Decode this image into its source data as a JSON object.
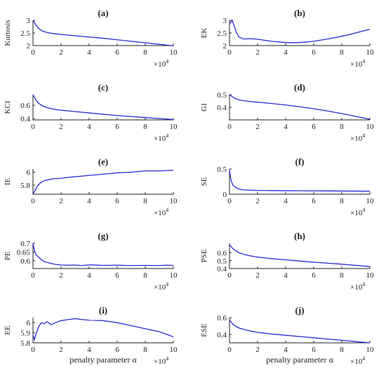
{
  "figure": {
    "xlabel_text": "penalty parameter α",
    "exponent_text": "×10",
    "exponent_power": "4",
    "line_color": "#2b2bd9"
  },
  "chart_data": [
    {
      "id": "a",
      "type": "line",
      "title": "(a)",
      "ylabel": "Kurtosis",
      "xlim": [
        0,
        10
      ],
      "ylim": [
        2,
        3
      ],
      "xticks": [
        0,
        2,
        4,
        6,
        8,
        10
      ],
      "yticks": [
        2,
        2.5,
        3
      ],
      "ytick_labels": [
        "2",
        "2.5",
        "3"
      ],
      "show_xlabel": false,
      "x": [
        0,
        0.2,
        0.4,
        0.7,
        1,
        1.5,
        2,
        3,
        4,
        5,
        6,
        7,
        8,
        9,
        10
      ],
      "y": [
        3.0,
        2.82,
        2.68,
        2.57,
        2.52,
        2.47,
        2.44,
        2.39,
        2.34,
        2.29,
        2.23,
        2.17,
        2.11,
        2.05,
        1.99
      ]
    },
    {
      "id": "b",
      "type": "line",
      "title": "(b)",
      "ylabel": "EK",
      "xlim": [
        0,
        10
      ],
      "ylim": [
        2,
        3
      ],
      "xticks": [
        0,
        2,
        4,
        6,
        8,
        10
      ],
      "yticks": [
        2,
        2.5,
        3
      ],
      "ytick_labels": [
        "2",
        "2.5",
        "3"
      ],
      "show_xlabel": false,
      "x": [
        0,
        0.2,
        0.35,
        0.5,
        0.7,
        1,
        1.5,
        2,
        3,
        4,
        4.5,
        5,
        6,
        7,
        8,
        9,
        10
      ],
      "y": [
        2.85,
        3.0,
        2.75,
        2.5,
        2.33,
        2.26,
        2.27,
        2.25,
        2.17,
        2.12,
        2.11,
        2.12,
        2.17,
        2.26,
        2.37,
        2.5,
        2.65
      ]
    },
    {
      "id": "c",
      "type": "line",
      "title": "(c)",
      "ylabel": "KCI",
      "xlim": [
        0,
        10
      ],
      "ylim": [
        0.38,
        0.76
      ],
      "xticks": [
        0,
        2,
        4,
        6,
        8,
        10
      ],
      "yticks": [
        0.4,
        0.6
      ],
      "ytick_labels": [
        "0.4",
        "0.6"
      ],
      "show_xlabel": false,
      "x": [
        0,
        0.2,
        0.4,
        0.7,
        1,
        1.5,
        2,
        3,
        4,
        5,
        6,
        7,
        8,
        9,
        10
      ],
      "y": [
        0.76,
        0.68,
        0.63,
        0.59,
        0.565,
        0.54,
        0.525,
        0.505,
        0.485,
        0.465,
        0.445,
        0.43,
        0.415,
        0.4,
        0.385
      ]
    },
    {
      "id": "d",
      "type": "line",
      "title": "(d)",
      "ylabel": "GI",
      "xlim": [
        0,
        10
      ],
      "ylim": [
        0.3,
        0.5
      ],
      "xticks": [
        0,
        2,
        4,
        6,
        8,
        10
      ],
      "yticks": [
        0.4,
        0.5
      ],
      "ytick_labels": [
        "0.4",
        "0.5"
      ],
      "show_xlabel": false,
      "x": [
        0,
        0.2,
        0.4,
        0.7,
        1,
        1.5,
        2,
        3,
        4,
        5,
        6,
        7,
        8,
        9,
        10
      ],
      "y": [
        0.5,
        0.483,
        0.47,
        0.458,
        0.452,
        0.445,
        0.44,
        0.43,
        0.418,
        0.404,
        0.388,
        0.37,
        0.35,
        0.328,
        0.305
      ]
    },
    {
      "id": "e",
      "type": "line",
      "title": "(e)",
      "ylabel": "IE",
      "xlim": [
        0,
        10
      ],
      "ylim": [
        5.66,
        6.05
      ],
      "xticks": [
        0,
        2,
        4,
        6,
        8,
        10
      ],
      "yticks": [
        5.8,
        6
      ],
      "ytick_labels": [
        "5.8",
        "6"
      ],
      "show_xlabel": false,
      "x": [
        0,
        0.1,
        0.3,
        0.5,
        0.8,
        1,
        1.5,
        2,
        2.5,
        3,
        4,
        5,
        6,
        7,
        8,
        9,
        10
      ],
      "y": [
        5.66,
        5.7,
        5.78,
        5.83,
        5.87,
        5.88,
        5.9,
        5.905,
        5.92,
        5.93,
        5.95,
        5.97,
        5.99,
        6.0,
        6.02,
        6.02,
        6.03
      ]
    },
    {
      "id": "f",
      "type": "line",
      "title": "(f)",
      "ylabel": "SE",
      "xlim": [
        0,
        10
      ],
      "ylim": [
        0,
        0.5
      ],
      "xticks": [
        0,
        2,
        4,
        6,
        8,
        10
      ],
      "yticks": [
        0,
        0.5
      ],
      "ytick_labels": [
        "0",
        "0.5"
      ],
      "show_xlabel": false,
      "x": [
        0,
        0.08,
        0.15,
        0.25,
        0.4,
        0.6,
        0.8,
        1,
        1.5,
        2,
        3,
        4,
        5,
        6,
        7,
        8,
        9,
        10
      ],
      "y": [
        0.48,
        0.32,
        0.24,
        0.18,
        0.14,
        0.11,
        0.095,
        0.085,
        0.08,
        0.075,
        0.072,
        0.07,
        0.068,
        0.066,
        0.065,
        0.063,
        0.062,
        0.06
      ]
    },
    {
      "id": "g",
      "type": "line",
      "title": "(g)",
      "ylabel": "PE",
      "xlim": [
        0,
        10
      ],
      "ylim": [
        0.555,
        0.7
      ],
      "xticks": [
        0,
        2,
        4,
        6,
        8,
        10
      ],
      "yticks": [
        0.6,
        0.65,
        0.7
      ],
      "ytick_labels": [
        "0.6",
        "0.65",
        "0.7"
      ],
      "show_xlabel": false,
      "x": [
        0,
        0.1,
        0.2,
        0.4,
        0.6,
        0.8,
        1,
        1.5,
        2,
        2.5,
        3,
        3.5,
        4,
        5,
        6,
        7,
        8,
        9,
        9.5,
        10
      ],
      "y": [
        0.7,
        0.66,
        0.635,
        0.62,
        0.605,
        0.595,
        0.59,
        0.58,
        0.575,
        0.574,
        0.575,
        0.572,
        0.576,
        0.573,
        0.574,
        0.572,
        0.573,
        0.572,
        0.574,
        0.573
      ]
    },
    {
      "id": "h",
      "type": "line",
      "title": "(h)",
      "ylabel": "PSE",
      "xlim": [
        0,
        10
      ],
      "ylim": [
        0.4,
        0.72
      ],
      "xticks": [
        0,
        2,
        4,
        6,
        8,
        10
      ],
      "yticks": [
        0.4,
        0.5,
        0.6
      ],
      "ytick_labels": [
        "0.4",
        "0.5",
        "0.6"
      ],
      "show_xlabel": false,
      "x": [
        0,
        0.2,
        0.4,
        0.7,
        1,
        1.5,
        2,
        3,
        4,
        5,
        6,
        7,
        8,
        9,
        10
      ],
      "y": [
        0.7,
        0.66,
        0.63,
        0.6,
        0.58,
        0.56,
        0.545,
        0.525,
        0.51,
        0.495,
        0.48,
        0.468,
        0.455,
        0.44,
        0.425
      ]
    },
    {
      "id": "i",
      "type": "line",
      "title": "(i)",
      "ylabel": "EE",
      "xlim": [
        0,
        10
      ],
      "ylim": [
        5.8,
        6.05
      ],
      "xticks": [
        0,
        2,
        4,
        6,
        8,
        10
      ],
      "yticks": [
        5.8,
        5.9,
        6
      ],
      "ytick_labels": [
        "5.8",
        "5.9",
        "6"
      ],
      "show_xlabel": true,
      "x": [
        0,
        0.1,
        0.2,
        0.4,
        0.6,
        0.8,
        1,
        1.3,
        1.6,
        2,
        2.5,
        3,
        3.5,
        4,
        5,
        6,
        7,
        8,
        9,
        10
      ],
      "y": [
        5.88,
        5.83,
        5.88,
        5.96,
        6.0,
        5.99,
        6.01,
        5.98,
        6.0,
        6.02,
        6.03,
        6.04,
        6.03,
        6.025,
        6.02,
        6.0,
        5.97,
        5.94,
        5.91,
        5.86
      ]
    },
    {
      "id": "j",
      "type": "line",
      "title": "(j)",
      "ylabel": "ESE",
      "xlim": [
        0,
        10
      ],
      "ylim": [
        0.3,
        0.6
      ],
      "xticks": [
        0,
        2,
        4,
        6,
        8,
        10
      ],
      "yticks": [
        0.4,
        0.6
      ],
      "ytick_labels": [
        "0.4",
        "0.6"
      ],
      "show_xlabel": true,
      "x": [
        0,
        0.2,
        0.4,
        0.7,
        1,
        1.5,
        2,
        3,
        4,
        5,
        6,
        7,
        8,
        9,
        10
      ],
      "y": [
        0.57,
        0.53,
        0.5,
        0.475,
        0.46,
        0.44,
        0.425,
        0.405,
        0.39,
        0.375,
        0.36,
        0.345,
        0.33,
        0.315,
        0.3
      ]
    }
  ]
}
